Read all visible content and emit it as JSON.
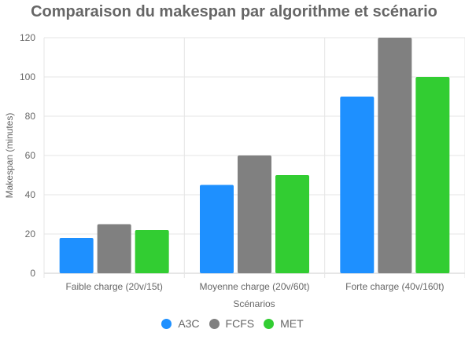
{
  "chart_data": {
    "type": "bar",
    "title": "Comparaison du makespan par algorithme et scénario",
    "xlabel": "Scénarios",
    "ylabel": "Makespan (minutes)",
    "categories": [
      "Faible charge (20v/15t)",
      "Moyenne charge (20v/60t)",
      "Forte charge (40v/160t)"
    ],
    "ylim": [
      0,
      120
    ],
    "yticks": [
      0,
      20,
      40,
      60,
      80,
      100,
      120
    ],
    "grid": true,
    "legend_position": "bottom",
    "series": [
      {
        "name": "A3C",
        "color": "#1e90ff",
        "values": [
          18,
          45,
          90
        ]
      },
      {
        "name": "FCFS",
        "color": "#808080",
        "values": [
          25,
          60,
          120
        ]
      },
      {
        "name": "MET",
        "color": "#32cd32",
        "values": [
          22,
          50,
          100
        ]
      }
    ]
  }
}
